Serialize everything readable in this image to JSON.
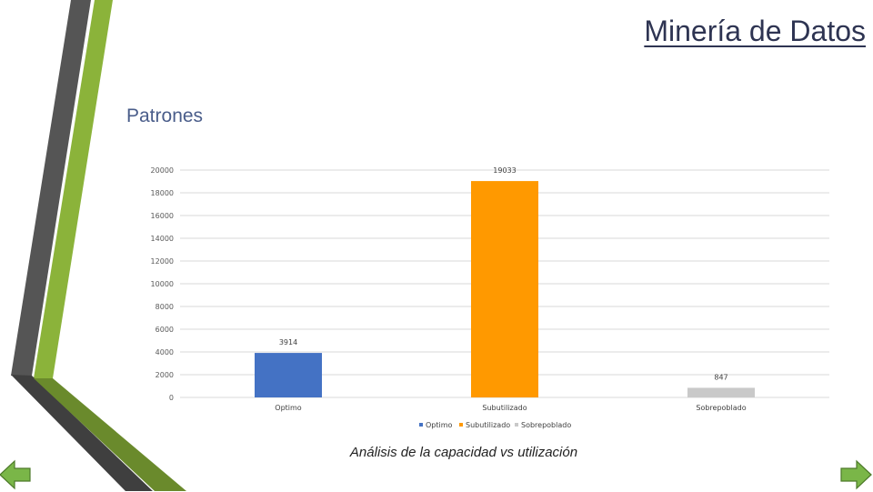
{
  "slide": {
    "title": "Minería de Datos",
    "section_title": "Patrones",
    "caption": "Análisis de la capacidad vs utilización"
  },
  "theme": {
    "dark_stripe": "#4d4d4d",
    "green_stripe": "#8bb33a",
    "dark_green": "#5a7a28",
    "nav_green": "#7ab648"
  },
  "nav": {
    "prev_icon": "arrow-left-icon",
    "next_icon": "arrow-right-icon"
  },
  "chart_data": {
    "type": "bar",
    "categories": [
      "Optimo",
      "Subutilizado",
      "Sobrepoblado"
    ],
    "values": [
      3914,
      19033,
      847
    ],
    "data_labels": [
      "3914",
      "19033",
      "847"
    ],
    "colors": [
      "#4472c4",
      "#ff9900",
      "#c9c9c9"
    ],
    "ylim": [
      0,
      20000
    ],
    "yticks": [
      0,
      2000,
      4000,
      6000,
      8000,
      10000,
      12000,
      14000,
      16000,
      18000,
      20000
    ],
    "ytick_labels": [
      "0",
      "2000",
      "4000",
      "6000",
      "8000",
      "10000",
      "12000",
      "14000",
      "16000",
      "18000",
      "20000"
    ],
    "grid": true,
    "legend": [
      "Optimo",
      "Subutilizado",
      "Sobrepoblado"
    ],
    "legend_position": "bottom",
    "title": "",
    "xlabel": "",
    "ylabel": ""
  }
}
